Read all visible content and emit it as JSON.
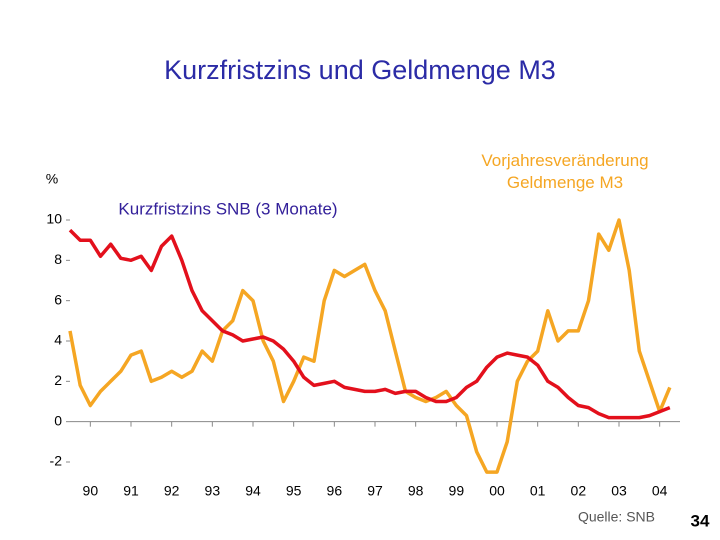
{
  "chart_data": {
    "type": "line",
    "title": "Kurzfristzins und Geldmenge M3",
    "ylabel": "%",
    "source": "Quelle: SNB",
    "x": [
      1990,
      1990.25,
      1990.5,
      1990.75,
      1991,
      1991.25,
      1991.5,
      1991.75,
      1992,
      1992.25,
      1992.5,
      1992.75,
      1993,
      1993.25,
      1993.5,
      1993.75,
      1994,
      1994.25,
      1994.5,
      1994.75,
      1995,
      1995.25,
      1995.5,
      1995.75,
      1996,
      1996.25,
      1996.5,
      1996.75,
      1997,
      1997.25,
      1997.5,
      1997.75,
      1998,
      1998.25,
      1998.5,
      1998.75,
      1999,
      1999.25,
      1999.5,
      1999.75,
      2000,
      2000.25,
      2000.5,
      2000.75,
      2001,
      2001.25,
      2001.5,
      2001.75,
      2002,
      2002.25,
      2002.5,
      2002.75,
      2003,
      2003.25,
      2003.5,
      2003.75,
      2004,
      2004.25,
      2004.5,
      2004.75
    ],
    "series": [
      {
        "name": "Kurzfristzins SNB (3 Monate)",
        "color": "#e3101c",
        "values": [
          9.5,
          9.0,
          9.0,
          8.2,
          8.8,
          8.1,
          8.0,
          8.2,
          7.5,
          8.7,
          9.2,
          8.0,
          6.5,
          5.5,
          5.0,
          4.5,
          4.3,
          4.0,
          4.1,
          4.2,
          4.0,
          3.6,
          3.0,
          2.2,
          1.8,
          1.9,
          2.0,
          1.7,
          1.6,
          1.5,
          1.5,
          1.6,
          1.4,
          1.5,
          1.5,
          1.2,
          1.0,
          1.0,
          1.2,
          1.7,
          2.0,
          2.7,
          3.2,
          3.4,
          3.3,
          3.2,
          2.8,
          2.0,
          1.7,
          1.2,
          0.8,
          0.7,
          0.4,
          0.2,
          0.2,
          0.2,
          0.2,
          0.3,
          0.5,
          0.7
        ]
      },
      {
        "name": "Vorjahresveränderung Geldmenge M3",
        "color": "#f5a623",
        "values": [
          4.5,
          1.8,
          0.8,
          1.5,
          2.0,
          2.5,
          3.3,
          3.5,
          2.0,
          2.2,
          2.5,
          2.2,
          2.5,
          3.5,
          3.0,
          4.5,
          5.0,
          6.5,
          6.0,
          4.0,
          3.0,
          1.0,
          2.0,
          3.2,
          3.0,
          6.0,
          7.5,
          7.2,
          7.5,
          7.8,
          6.5,
          5.5,
          3.5,
          1.5,
          1.2,
          1.0,
          1.2,
          1.5,
          0.8,
          0.3,
          -1.5,
          -2.5,
          -2.5,
          -1.0,
          2.0,
          3.0,
          3.5,
          5.5,
          4.0,
          4.5,
          4.5,
          6.0,
          9.3,
          8.5,
          10.0,
          7.5,
          3.5,
          2.0,
          0.5,
          1.7
        ]
      }
    ],
    "xlim": [
      1990,
      2005
    ],
    "xticks": [
      {
        "value": 1990.5,
        "label": "90"
      },
      {
        "value": 1991.5,
        "label": "91"
      },
      {
        "value": 1992.5,
        "label": "92"
      },
      {
        "value": 1993.5,
        "label": "93"
      },
      {
        "value": 1994.5,
        "label": "94"
      },
      {
        "value": 1995.5,
        "label": "95"
      },
      {
        "value": 1996.5,
        "label": "96"
      },
      {
        "value": 1997.5,
        "label": "97"
      },
      {
        "value": 1998.5,
        "label": "98"
      },
      {
        "value": 1999.5,
        "label": "99"
      },
      {
        "value": 2000.5,
        "label": "00"
      },
      {
        "value": 2001.5,
        "label": "01"
      },
      {
        "value": 2002.5,
        "label": "02"
      },
      {
        "value": 2003.5,
        "label": "03"
      },
      {
        "value": 2004.5,
        "label": "04"
      }
    ],
    "ylim": [
      -2,
      10
    ],
    "yticks": [
      -2,
      0,
      2,
      4,
      6,
      8,
      10
    ],
    "grid": false
  },
  "page_number": "34"
}
